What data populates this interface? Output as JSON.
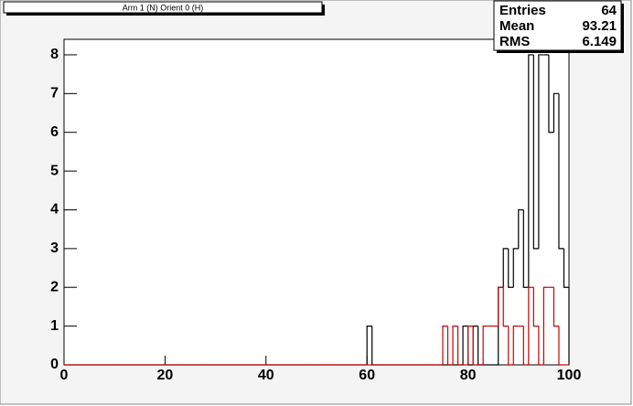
{
  "chart_data": {
    "type": "histogram",
    "title": "Arm 1 (N) Orient 0 (H)",
    "bins": [
      0,
      1,
      2,
      3,
      4,
      5,
      6,
      7,
      8,
      9,
      10,
      11,
      12,
      13,
      14,
      15,
      16,
      17,
      18,
      19,
      20,
      21,
      22,
      23,
      24,
      25,
      26,
      27,
      28,
      29,
      30,
      31,
      32,
      33,
      34,
      35,
      36,
      37,
      38,
      39,
      40,
      41,
      42,
      43,
      44,
      45,
      46,
      47,
      48,
      49,
      50,
      51,
      52,
      53,
      54,
      55,
      56,
      57,
      58,
      59,
      60,
      61,
      62,
      63,
      64,
      65,
      66,
      67,
      68,
      69,
      70,
      71,
      72,
      73,
      74,
      75,
      76,
      77,
      78,
      79,
      80,
      81,
      82,
      83,
      84,
      85,
      86,
      87,
      88,
      89,
      90,
      91,
      92,
      93,
      94,
      95,
      96,
      97,
      98,
      99,
      100
    ],
    "series": [
      {
        "color": "#000000",
        "values": [
          0,
          0,
          0,
          0,
          0,
          0,
          0,
          0,
          0,
          0,
          0,
          0,
          0,
          0,
          0,
          0,
          0,
          0,
          0,
          0,
          0,
          0,
          0,
          0,
          0,
          0,
          0,
          0,
          0,
          0,
          0,
          0,
          0,
          0,
          0,
          0,
          0,
          0,
          0,
          0,
          0,
          0,
          0,
          0,
          0,
          0,
          0,
          0,
          0,
          0,
          0,
          0,
          0,
          0,
          0,
          0,
          0,
          0,
          0,
          0,
          1,
          0,
          0,
          0,
          0,
          0,
          0,
          0,
          0,
          0,
          0,
          0,
          0,
          0,
          0,
          0,
          0,
          0,
          0,
          1,
          0,
          1,
          0,
          0,
          0,
          0,
          2,
          3,
          2,
          3,
          4,
          2,
          8,
          3,
          8,
          8,
          6,
          7,
          3,
          2
        ]
      },
      {
        "color": "#cc0000",
        "values": [
          0,
          0,
          0,
          0,
          0,
          0,
          0,
          0,
          0,
          0,
          0,
          0,
          0,
          0,
          0,
          0,
          0,
          0,
          0,
          0,
          0,
          0,
          0,
          0,
          0,
          0,
          0,
          0,
          0,
          0,
          0,
          0,
          0,
          0,
          0,
          0,
          0,
          0,
          0,
          0,
          0,
          0,
          0,
          0,
          0,
          0,
          0,
          0,
          0,
          0,
          0,
          0,
          0,
          0,
          0,
          0,
          0,
          0,
          0,
          0,
          0,
          0,
          0,
          0,
          0,
          0,
          0,
          0,
          0,
          0,
          0,
          0,
          0,
          0,
          0,
          1,
          0,
          1,
          0,
          0,
          1,
          0,
          0,
          1,
          1,
          1,
          2,
          1,
          0,
          1,
          1,
          0,
          2,
          1,
          0,
          2,
          2,
          1,
          0,
          0
        ]
      }
    ],
    "xlim": [
      0,
      100
    ],
    "xticks": [
      0,
      20,
      40,
      60,
      80,
      100
    ],
    "ylim": [
      0,
      8.4
    ],
    "yticks": [
      0,
      1,
      2,
      3,
      4,
      5,
      6,
      7,
      8
    ],
    "stats": [
      {
        "label": "Entries",
        "value": "64"
      },
      {
        "label": "Mean",
        "value": "93.21"
      },
      {
        "label": "RMS",
        "value": "6.149"
      }
    ]
  }
}
